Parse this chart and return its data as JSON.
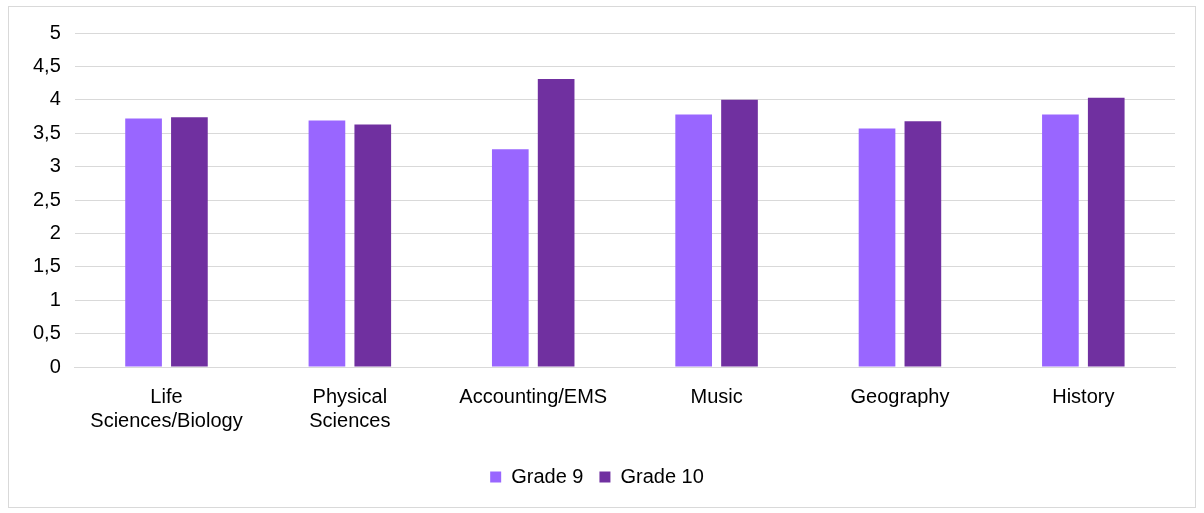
{
  "chart_data": {
    "type": "bar",
    "categories": [
      "Life Sciences/Biology",
      "Physical Sciences",
      "Accounting/EMS",
      "Music",
      "Geography",
      "History"
    ],
    "series": [
      {
        "name": "Grade 9",
        "color": "#9966ff",
        "values": [
          3.72,
          3.69,
          3.26,
          3.78,
          3.57,
          3.78
        ]
      },
      {
        "name": "Grade 10",
        "color": "#7030a0",
        "values": [
          3.74,
          3.63,
          4.31,
          4.0,
          3.68,
          4.03
        ]
      }
    ],
    "ylim": [
      0,
      5
    ],
    "yticks": [
      0,
      {
        "value": 0.5,
        "label": "0,5"
      },
      1,
      {
        "value": 1.5,
        "label": "1,5"
      },
      2,
      {
        "value": 2.5,
        "label": "2,5"
      },
      3,
      {
        "value": 3.5,
        "label": "3,5"
      },
      4,
      {
        "value": 4.5,
        "label": "4,5"
      },
      5
    ],
    "grid": "y",
    "legend": "bottom"
  }
}
